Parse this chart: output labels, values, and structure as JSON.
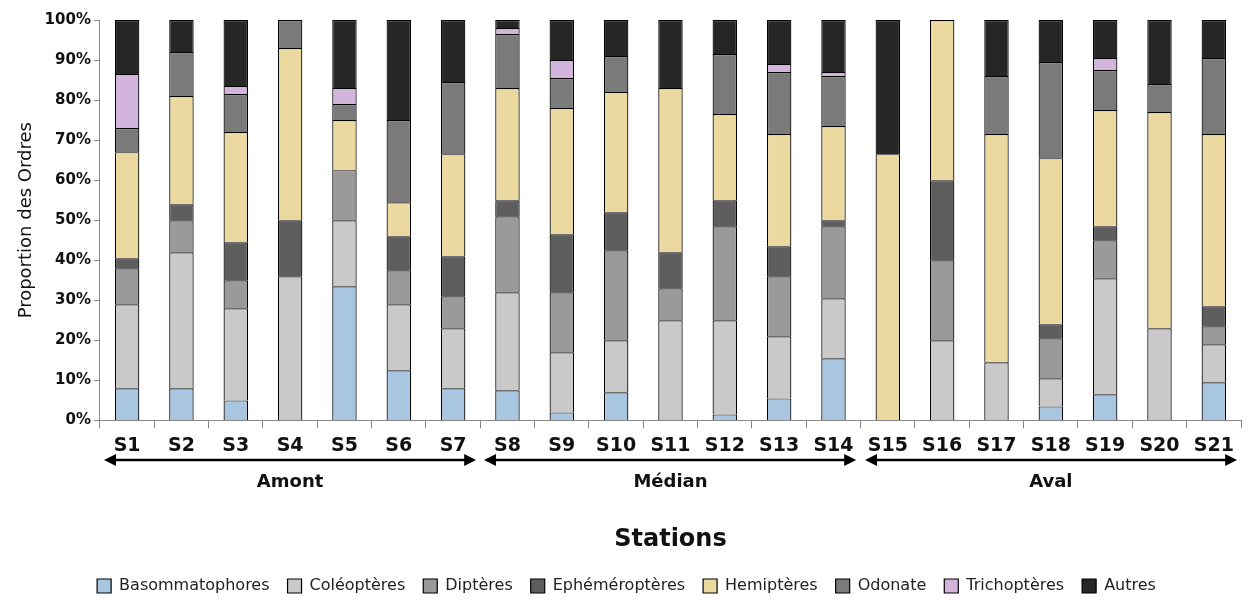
{
  "chart_data": {
    "type": "bar",
    "stacked": true,
    "xlabel": "Stations",
    "ylabel": "Proportion des Ordres",
    "categories": [
      "S1",
      "S2",
      "S3",
      "S4",
      "S5",
      "S6",
      "S7",
      "S8",
      "S9",
      "S10",
      "S11",
      "S12",
      "S13",
      "S14",
      "S15",
      "S16",
      "S17",
      "S18",
      "S19",
      "S20",
      "S21"
    ],
    "series": [
      {
        "name": "Basommatophores",
        "color": "#a9c6e0",
        "values": [
          8,
          8,
          5,
          0,
          33.5,
          12.5,
          8,
          7.5,
          2,
          7,
          0,
          1.5,
          5.5,
          15.5,
          0,
          0,
          0,
          3.5,
          6.5,
          0,
          9.5
        ]
      },
      {
        "name": "Coléoptères",
        "color": "#c9c9c9",
        "values": [
          21,
          34,
          23,
          36,
          16.5,
          16.5,
          15,
          24.5,
          15,
          13,
          25,
          23.5,
          15.5,
          15,
          0,
          20,
          14.5,
          7,
          29,
          23,
          9.5
        ]
      },
      {
        "name": "Diptères",
        "color": "#9a9a9a",
        "values": [
          9,
          8,
          7,
          0,
          12.5,
          8.5,
          8,
          19,
          15,
          22.5,
          8,
          23.5,
          15,
          18,
          0,
          20,
          0,
          10,
          9.5,
          0,
          4.5
        ]
      },
      {
        "name": "Ephéméroptères",
        "color": "#5e5e5e",
        "values": [
          2.5,
          4,
          9.5,
          14,
          0,
          8.5,
          10,
          4,
          14.5,
          9.5,
          9,
          6.5,
          7.5,
          1.5,
          0,
          20,
          0,
          3.5,
          3.5,
          0,
          5
        ]
      },
      {
        "name": "Hemiptères",
        "color": "#ecd9a0",
        "values": [
          26.5,
          27,
          27.5,
          43,
          12.5,
          8.5,
          25.5,
          28,
          31.5,
          30,
          41,
          21.5,
          28,
          23.5,
          66.5,
          40,
          57,
          41.5,
          29,
          54,
          43
        ]
      },
      {
        "name": "Odonate",
        "color": "#7a7a7a",
        "values": [
          6,
          11,
          9.5,
          7,
          4,
          20.5,
          18,
          13.5,
          7.5,
          9,
          0,
          15,
          15.5,
          12.5,
          0,
          0,
          14.5,
          24,
          10,
          7,
          19
        ]
      },
      {
        "name": "Trichoptères",
        "color": "#d2b4dc",
        "values": [
          13.5,
          0,
          2,
          0,
          4,
          0,
          0,
          1.5,
          4.5,
          0,
          0,
          0,
          2,
          1,
          0,
          0,
          0,
          0,
          3,
          0,
          0
        ]
      },
      {
        "name": "Autres",
        "color": "#262626",
        "values": [
          13.5,
          8,
          16.5,
          0,
          17,
          25,
          15.5,
          2,
          10,
          9,
          17,
          8.5,
          11,
          13,
          33.5,
          0,
          14,
          10.5,
          9.5,
          16,
          9.5
        ]
      }
    ],
    "ylim": [
      0,
      100
    ],
    "yticks": [
      {
        "value": 0,
        "label": "0%"
      },
      {
        "value": 10,
        "label": "10%"
      },
      {
        "value": 20,
        "label": "20%"
      },
      {
        "value": 30,
        "label": "30%"
      },
      {
        "value": 40,
        "label": "40%"
      },
      {
        "value": 50,
        "label": "50%"
      },
      {
        "value": 60,
        "label": "60%"
      },
      {
        "value": 70,
        "label": "70%"
      },
      {
        "value": 80,
        "label": "80%"
      },
      {
        "value": 90,
        "label": "90%"
      },
      {
        "value": 100,
        "label": "100%"
      }
    ],
    "annotations": [
      "Amont",
      "Médian",
      "Aval"
    ],
    "grid": false,
    "legend": "bottom"
  }
}
